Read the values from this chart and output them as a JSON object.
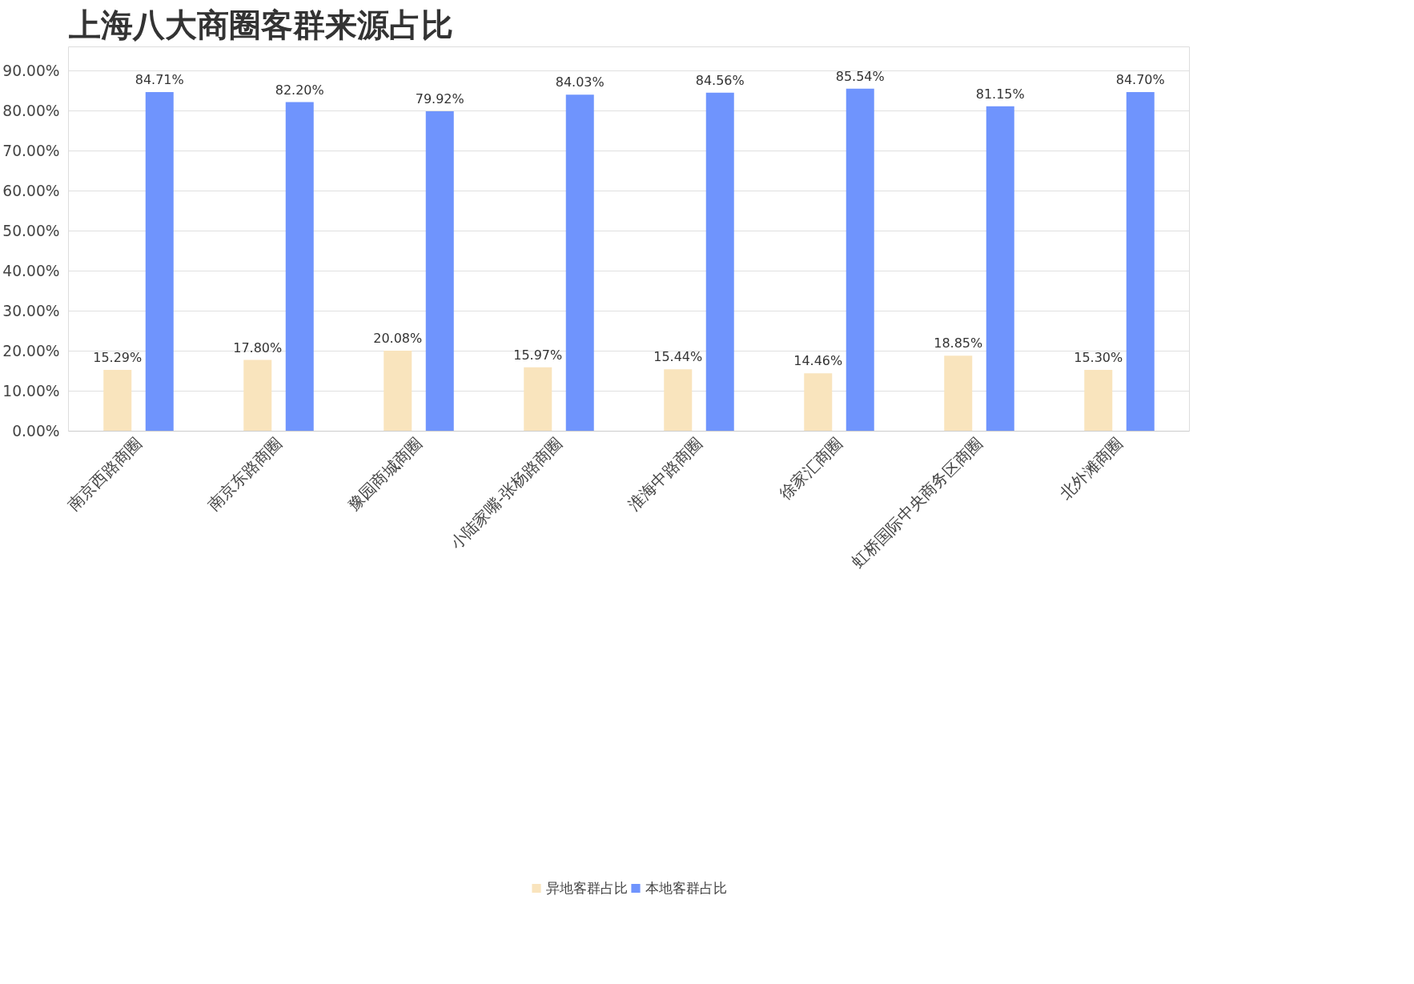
{
  "chart_data": {
    "type": "bar",
    "title": "上海八大商圈客群来源占比",
    "categories": [
      "南京西路商圈",
      "南京东路商圈",
      "豫园商城商圈",
      "小陆家嘴-张杨路商圈",
      "淮海中路商圈",
      "徐家汇商圈",
      "虹桥国际中央商务区商圈",
      "北外滩商圈"
    ],
    "series": [
      {
        "name": "异地客群占比",
        "color": "#f9e4bd",
        "values": [
          15.29,
          17.8,
          20.08,
          15.97,
          15.44,
          14.46,
          18.85,
          15.3
        ],
        "value_labels": [
          "15.29%",
          "17.80%",
          "20.08%",
          "15.97%",
          "15.44%",
          "14.46%",
          "18.85%",
          "15.30%"
        ]
      },
      {
        "name": "本地客群占比",
        "color": "#6f94fd",
        "values": [
          84.71,
          82.2,
          79.92,
          84.03,
          84.56,
          85.54,
          81.15,
          84.7
        ],
        "value_labels": [
          "84.71%",
          "82.20%",
          "79.92%",
          "84.03%",
          "84.56%",
          "85.54%",
          "81.15%",
          "84.70%"
        ]
      }
    ],
    "ylim": [
      0,
      90
    ],
    "yticks": [
      {
        "value": 0,
        "label": "0.00%"
      },
      {
        "value": 10,
        "label": "10.00%"
      },
      {
        "value": 20,
        "label": "20.00%"
      },
      {
        "value": 30,
        "label": "30.00%"
      },
      {
        "value": 40,
        "label": "40.00%"
      },
      {
        "value": 50,
        "label": "50.00%"
      },
      {
        "value": 60,
        "label": "60.00%"
      },
      {
        "value": 70,
        "label": "70.00%"
      },
      {
        "value": 80,
        "label": "80.00%"
      },
      {
        "value": 90,
        "label": "90.00%"
      }
    ],
    "grid": "y",
    "legend": "bottom"
  }
}
